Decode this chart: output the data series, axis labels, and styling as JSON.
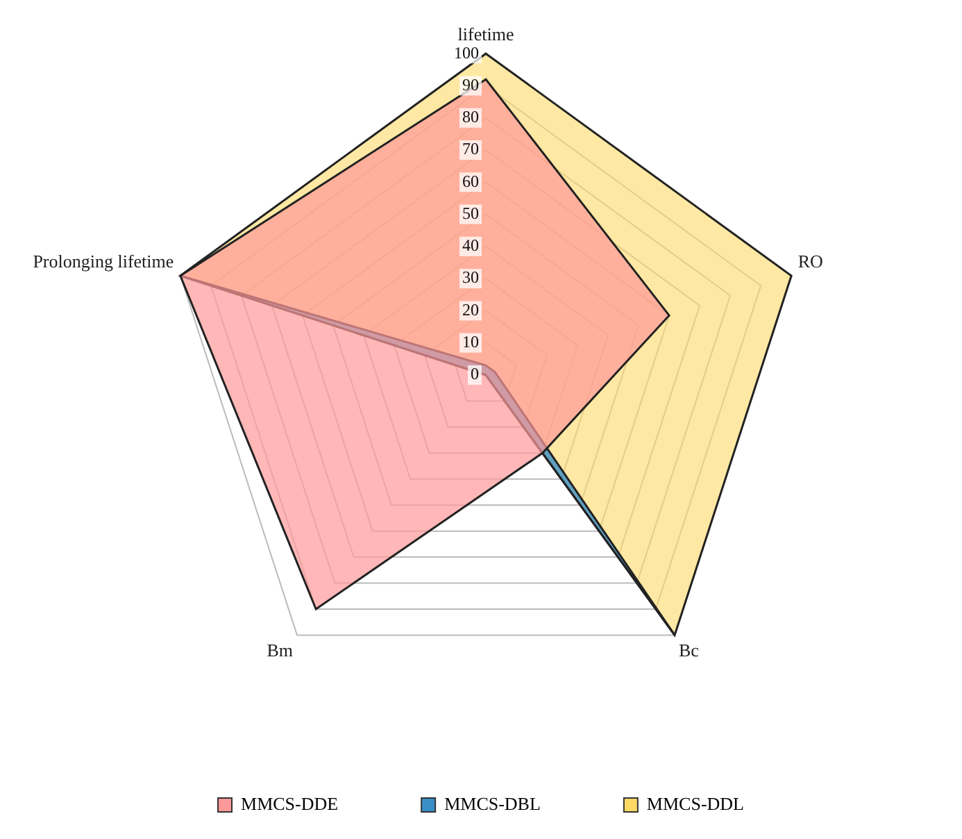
{
  "chart_data": {
    "type": "radar",
    "categories": [
      "lifetime",
      "RO",
      "Bc",
      "Bm",
      "Prolonging lifetime"
    ],
    "series": [
      {
        "name": "MMCS-DDE",
        "color": "#ff9999",
        "values": [
          92,
          60,
          30,
          90,
          100
        ]
      },
      {
        "name": "MMCS-DBL",
        "color": "#3a8fc8",
        "values": [
          3,
          3,
          100,
          0,
          100
        ]
      },
      {
        "name": "MMCS-DDL",
        "color": "#ffd966",
        "values": [
          100,
          100,
          100,
          0,
          100
        ]
      }
    ],
    "ylim": [
      0,
      100
    ],
    "yticks": [
      0,
      10,
      20,
      30,
      40,
      50,
      60,
      70,
      80,
      90,
      100
    ],
    "grid": true,
    "legend": "bottom",
    "marker": "none"
  }
}
